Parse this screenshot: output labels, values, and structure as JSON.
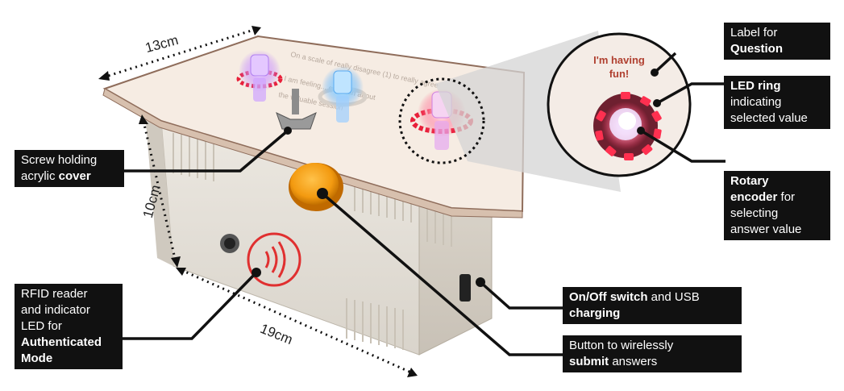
{
  "dimensions": {
    "width": "13cm",
    "height": "10cm",
    "length": "19cm"
  },
  "plate_text": {
    "sign": "I'm having fun!"
  },
  "labels": {
    "question": {
      "line1": "Label for",
      "bold": "Question"
    },
    "led_ring": {
      "bold": "LED ring",
      "rest1": "indicating",
      "rest2": "selected value"
    },
    "rotary": {
      "bold1": "Rotary",
      "bold2": "encoder",
      "rest1": " for",
      "rest2": "selecting",
      "rest3": "answer value"
    },
    "screw": {
      "line1": "Screw holding",
      "line2a": "acrylic ",
      "bold": "cover"
    },
    "rfid": {
      "l1": "RFID reader",
      "l2": "and indicator",
      "l3": "LED for",
      "bold1": "Authenticated",
      "bold2": "Mode"
    },
    "onoff": {
      "bold1": "On/Off switch",
      "rest1": " and USB",
      "bold2": "charging"
    },
    "button": {
      "line1": "Button to wirelessly",
      "bold": "submit",
      "rest": " answers"
    }
  },
  "colors": {
    "led_red": "#e8203a",
    "led_purple": "#c56cff",
    "led_blue": "#3aa0ff",
    "button_orange": "#f5a012"
  }
}
